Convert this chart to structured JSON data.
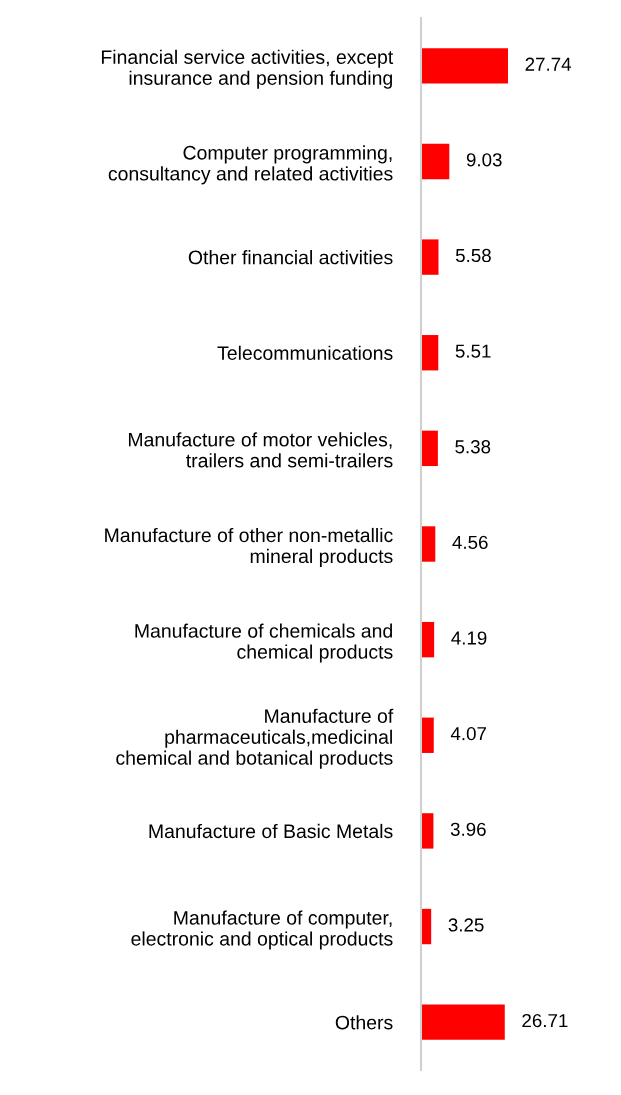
{
  "chart_data": {
    "type": "bar",
    "orientation": "horizontal",
    "data_labels": true,
    "grid": false,
    "legend": false,
    "tick_labels": "y",
    "categories": [
      "Financial service activities, except\ninsurance and pension funding",
      "Computer programming,\nconsultancy and related activities",
      "Other financial activities",
      "Telecommunications",
      "Manufacture of motor vehicles,\ntrailers and semi-trailers",
      "Manufacture of other non-metallic\nmineral products",
      "Manufacture of chemicals and\nchemical products",
      "Manufacture of\npharmaceuticals,medicinal\nchemical and botanical products",
      "Manufacture of Basic Metals",
      "Manufacture of computer,\nelectronic and optical products",
      "Others"
    ],
    "series": [
      {
        "color": "#ff0000",
        "values": [
          27.74,
          9.03,
          5.58,
          5.51,
          5.38,
          4.56,
          4.19,
          4.07,
          3.96,
          3.25,
          26.71
        ]
      }
    ]
  }
}
